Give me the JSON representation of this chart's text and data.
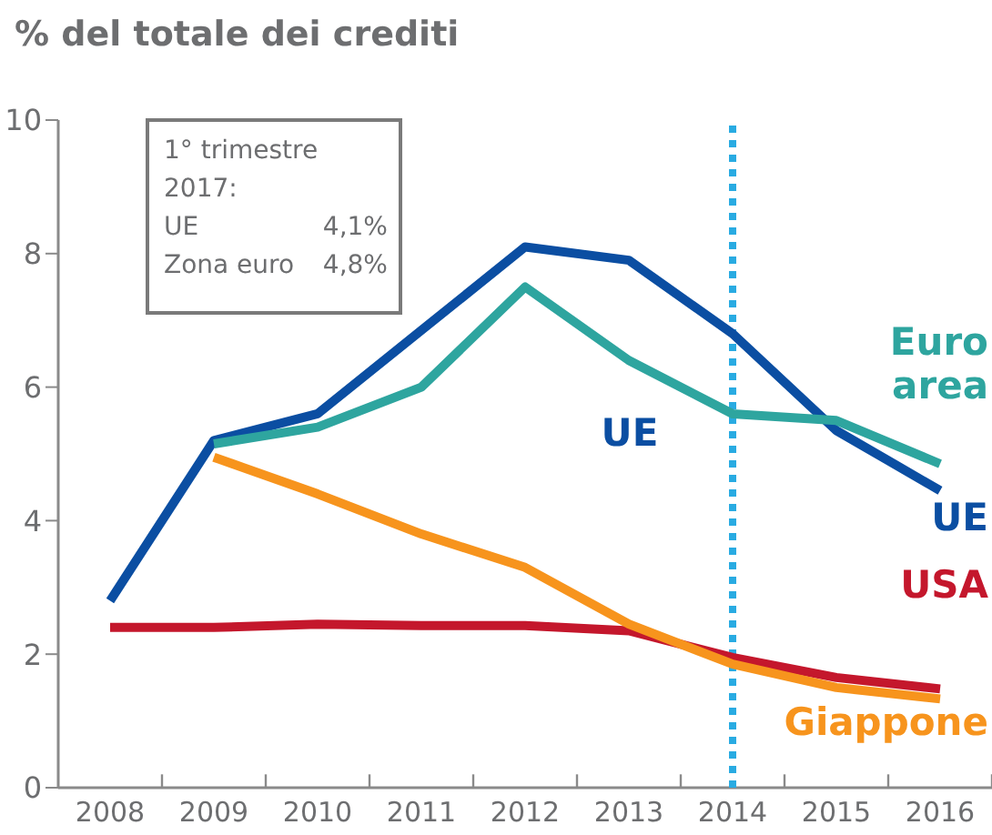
{
  "chart_data": {
    "type": "line",
    "title": "% del totale dei crediti",
    "categories": [
      "2008",
      "2009",
      "2010",
      "2011",
      "2012",
      "2013",
      "2014",
      "2015",
      "2016"
    ],
    "series": [
      {
        "name": "UE",
        "color": "#0b4ea2",
        "values": [
          2.8,
          5.2,
          5.6,
          6.85,
          8.1,
          7.9,
          6.8,
          5.35,
          4.45
        ]
      },
      {
        "name": "Euro\narea",
        "color": "#2ea59f",
        "values": [
          null,
          5.15,
          5.4,
          6.0,
          7.5,
          6.4,
          5.6,
          5.5,
          4.85
        ]
      },
      {
        "name": "USA",
        "color": "#c4172c",
        "values": [
          2.4,
          2.4,
          2.45,
          2.43,
          2.43,
          2.35,
          1.95,
          1.65,
          1.48
        ]
      },
      {
        "name": "Giappone",
        "color": "#f7941d",
        "values": [
          null,
          4.95,
          4.4,
          3.8,
          3.3,
          2.45,
          1.85,
          1.5,
          1.33
        ]
      }
    ],
    "ylim": [
      0,
      10
    ],
    "yticks": [
      0,
      2,
      4,
      6,
      8,
      10
    ],
    "marker": "none",
    "line_style": "solid",
    "ref_lines": [
      {
        "axis": "x",
        "value": "2014",
        "color": "#29abe2",
        "line_style": "dotted"
      }
    ],
    "annotations": [
      "1° trimestre\n2017:\nUE\t4,1%\nZona euro\t4,8%",
      "UE"
    ]
  }
}
